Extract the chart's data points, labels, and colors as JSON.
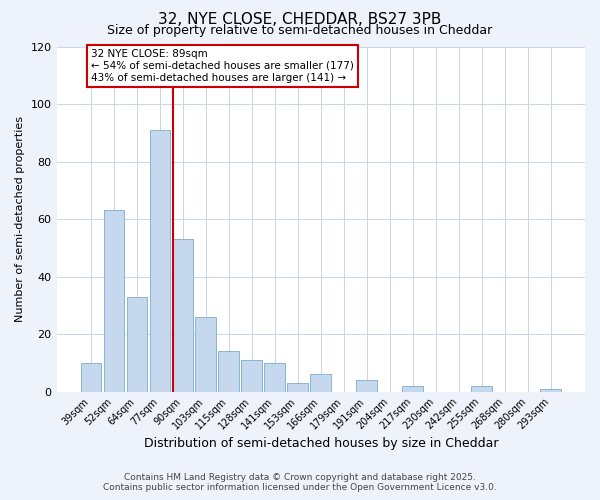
{
  "title": "32, NYE CLOSE, CHEDDAR, BS27 3PB",
  "subtitle": "Size of property relative to semi-detached houses in Cheddar",
  "xlabel": "Distribution of semi-detached houses by size in Cheddar",
  "ylabel": "Number of semi-detached properties",
  "bar_values": [
    10,
    63,
    33,
    91,
    53,
    26,
    14,
    11,
    10,
    3,
    6,
    0,
    4,
    0,
    2,
    0,
    0,
    2,
    0,
    0,
    1
  ],
  "bin_labels": [
    "39sqm",
    "52sqm",
    "64sqm",
    "77sqm",
    "90sqm",
    "103sqm",
    "115sqm",
    "128sqm",
    "141sqm",
    "153sqm",
    "166sqm",
    "179sqm",
    "191sqm",
    "204sqm",
    "217sqm",
    "230sqm",
    "242sqm",
    "255sqm",
    "268sqm",
    "280sqm",
    "293sqm"
  ],
  "bar_color": "#c5d8ed",
  "bar_edge_color": "#7aaed0",
  "marker_index": 4,
  "marker_color": "#cc0000",
  "annotation_line1": "32 NYE CLOSE: 89sqm",
  "annotation_line2": "← 54% of semi-detached houses are smaller (177)",
  "annotation_line3": "43% of semi-detached houses are larger (141) →",
  "ylim": [
    0,
    120
  ],
  "yticks": [
    0,
    20,
    40,
    60,
    80,
    100,
    120
  ],
  "xlabel_fontsize": 9,
  "ylabel_fontsize": 8,
  "title_fontsize": 11,
  "subtitle_fontsize": 9,
  "footer1": "Contains HM Land Registry data © Crown copyright and database right 2025.",
  "footer2": "Contains public sector information licensed under the Open Government Licence v3.0.",
  "bg_color": "#eef2fb",
  "plot_bg_color": "#ffffff",
  "grid_color": "#c8d4e8"
}
